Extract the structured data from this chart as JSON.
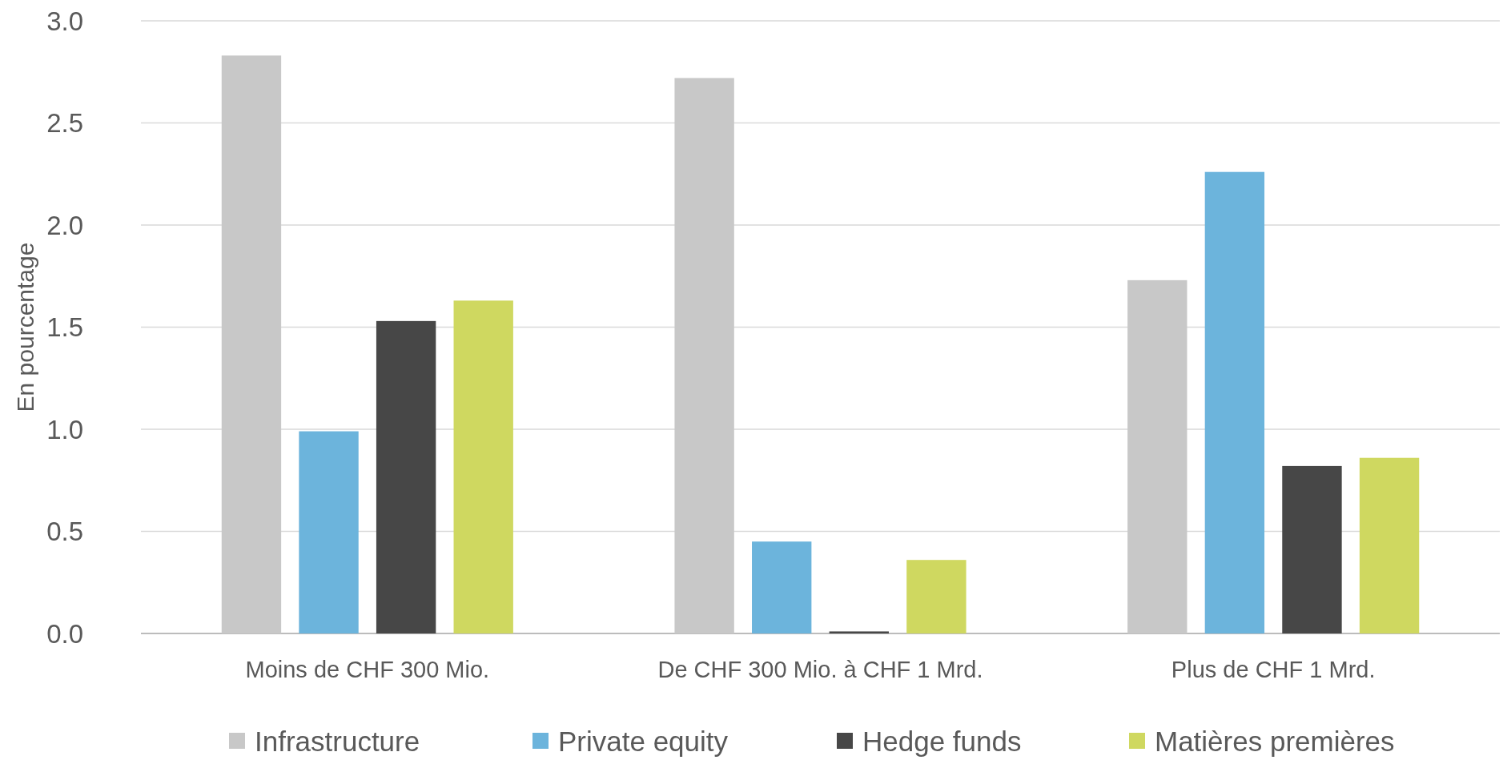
{
  "chart_data": {
    "type": "bar",
    "ylabel": "En pourcentage",
    "categories": [
      "Moins de CHF 300 Mio.",
      "De CHF 300 Mio. à CHF 1 Mrd.",
      "Plus de CHF 1 Mrd."
    ],
    "series": [
      {
        "name": "Infrastructure",
        "color": "#c8c8c8",
        "values": [
          2.83,
          2.72,
          1.73
        ]
      },
      {
        "name": "Private equity",
        "color": "#6cb4dc",
        "values": [
          0.99,
          0.45,
          2.26
        ]
      },
      {
        "name": "Hedge funds",
        "color": "#474747",
        "values": [
          1.53,
          0.01,
          0.82
        ]
      },
      {
        "name": "Matières premières",
        "color": "#cfd860",
        "values": [
          1.63,
          0.36,
          0.86
        ]
      }
    ],
    "ylim": [
      0,
      3
    ],
    "yticks": [
      {
        "value": 0,
        "label": "0.0"
      },
      {
        "value": 0.5,
        "label": "0.5"
      },
      {
        "value": 1,
        "label": "1.0"
      },
      {
        "value": 1.5,
        "label": "1.5"
      },
      {
        "value": 2,
        "label": "2.0"
      },
      {
        "value": 2.5,
        "label": "2.5"
      },
      {
        "value": 3,
        "label": "3.0"
      }
    ],
    "grid": "y",
    "legend": "bottom"
  }
}
